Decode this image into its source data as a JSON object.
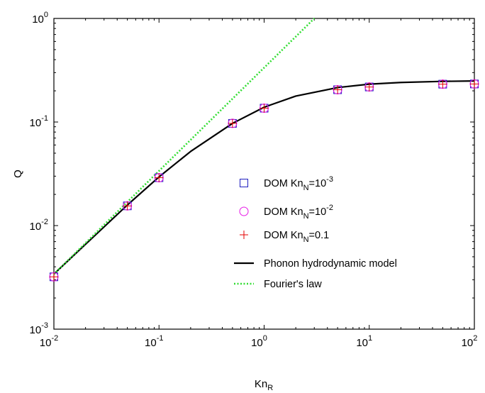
{
  "chart_data": {
    "type": "scatter",
    "x_scale": "log",
    "y_scale": "log",
    "xlim": [
      0.01,
      100
    ],
    "ylim": [
      0.001,
      1
    ],
    "xlabel": {
      "base": "Kn",
      "sub": "R"
    },
    "ylabel": "Q",
    "x_ticks": [
      {
        "value": 0.01,
        "base": "10",
        "exp": "-2"
      },
      {
        "value": 0.1,
        "base": "10",
        "exp": "-1"
      },
      {
        "value": 1,
        "base": "10",
        "exp": "0"
      },
      {
        "value": 10,
        "base": "10",
        "exp": "1"
      },
      {
        "value": 100,
        "base": "10",
        "exp": "2"
      }
    ],
    "y_ticks": [
      {
        "value": 0.001,
        "base": "10",
        "exp": "-3"
      },
      {
        "value": 0.01,
        "base": "10",
        "exp": "-2"
      },
      {
        "value": 0.1,
        "base": "10",
        "exp": "-1"
      },
      {
        "value": 1,
        "base": "10",
        "exp": "0"
      }
    ],
    "grid": false,
    "legend_position": "center-right",
    "series": [
      {
        "name": "DOM Kn_N=10^-3",
        "legend": {
          "pre": "DOM Kn",
          "sub": "N",
          "mid": "=10",
          "sup": "-3"
        },
        "marker": "square",
        "color": "#1f1fbf",
        "x": [
          0.01,
          0.05,
          0.1,
          0.5,
          1,
          5,
          10,
          50,
          100
        ],
        "y": [
          0.0032,
          0.0155,
          0.029,
          0.097,
          0.136,
          0.205,
          0.218,
          0.232,
          0.233
        ]
      },
      {
        "name": "DOM Kn_N=10^-2",
        "legend": {
          "pre": "DOM Kn",
          "sub": "N",
          "mid": "=10",
          "sup": "-2"
        },
        "marker": "circle",
        "color": "#e619e6",
        "x": [
          0.01,
          0.05,
          0.1,
          0.5,
          1,
          5,
          10,
          50,
          100
        ],
        "y": [
          0.0032,
          0.0155,
          0.029,
          0.097,
          0.136,
          0.205,
          0.218,
          0.232,
          0.233
        ]
      },
      {
        "name": "DOM Kn_N=0.1",
        "legend": {
          "pre": "DOM Kn",
          "sub": "N",
          "mid": "=0.1",
          "sup": ""
        },
        "marker": "plus",
        "color": "#e60000",
        "x": [
          0.01,
          0.05,
          0.1,
          0.5,
          1,
          5,
          10,
          50,
          100
        ],
        "y": [
          0.0032,
          0.0155,
          0.029,
          0.097,
          0.136,
          0.205,
          0.218,
          0.232,
          0.233
        ]
      },
      {
        "name": "Phonon hydrodynamic model",
        "legend": {
          "pre": "Phonon hydrodynamic model",
          "sub": "",
          "mid": "",
          "sup": ""
        },
        "marker": "line-solid",
        "color": "#000000",
        "x": [
          0.01,
          0.02,
          0.05,
          0.1,
          0.2,
          0.5,
          1,
          2,
          5,
          10,
          20,
          50,
          100
        ],
        "y": [
          0.0034,
          0.0066,
          0.0158,
          0.0295,
          0.052,
          0.097,
          0.139,
          0.178,
          0.215,
          0.232,
          0.241,
          0.247,
          0.249
        ]
      },
      {
        "name": "Fourier's law",
        "legend": {
          "pre": "Fourier's law",
          "sub": "",
          "mid": "",
          "sup": ""
        },
        "marker": "line-dotted",
        "color": "#33dd33",
        "x": [
          0.01,
          3.0
        ],
        "y": [
          0.0034,
          1.0
        ]
      }
    ]
  }
}
